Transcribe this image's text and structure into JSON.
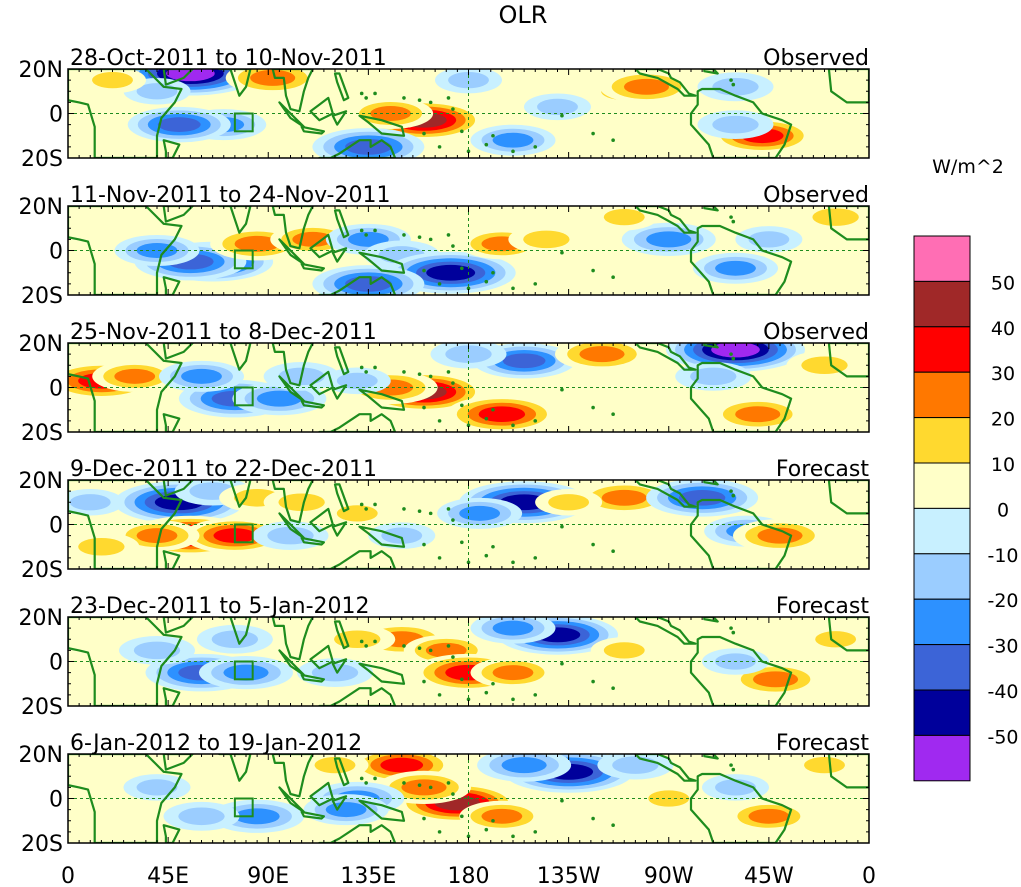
{
  "chart_data": {
    "type": "heatmap",
    "title": "OLR",
    "colorbar": {
      "units": "W/m^2",
      "tick_labels": [
        "50",
        "40",
        "30",
        "20",
        "10",
        "0",
        "-10",
        "-20",
        "-30",
        "-40",
        "-50"
      ],
      "levels": [
        60,
        50,
        40,
        30,
        20,
        10,
        0,
        -10,
        -20,
        -30,
        -40,
        -50,
        -60
      ],
      "colors": [
        "#ff6eb4",
        "#a02828",
        "#ff0000",
        "#ff7800",
        "#ffd92f",
        "#ffffc8",
        "#c8f0ff",
        "#9bcdff",
        "#2d91ff",
        "#3c64d7",
        "#00009b",
        "#a029f0"
      ]
    },
    "x_axis": {
      "tick_labels": [
        "0",
        "45E",
        "90E",
        "135E",
        "180",
        "135W",
        "90W",
        "45W",
        "0"
      ],
      "lon_values": [
        0,
        45,
        90,
        135,
        180,
        225,
        270,
        315,
        360
      ],
      "range": [
        0,
        360
      ]
    },
    "y_axis": {
      "tick_labels": [
        "20N",
        "0",
        "20S"
      ],
      "lat_values": [
        20,
        0,
        -20
      ],
      "range": [
        -20,
        20
      ]
    },
    "land_color": "#1e8c1e",
    "box_marker": {
      "lon": [
        75,
        83
      ],
      "lat": [
        -8,
        0
      ]
    },
    "panels": [
      {
        "period": "28-Oct-2011 to 10-Nov-2011",
        "label": "Observed",
        "anomalies": [
          {
            "lon": 160,
            "lat": -3,
            "value": 45
          },
          {
            "lon": 145,
            "lat": 0,
            "value": 25
          },
          {
            "lon": 55,
            "lat": 18,
            "value": -55
          },
          {
            "lon": 40,
            "lat": 10,
            "value": -15
          },
          {
            "lon": 92,
            "lat": 16,
            "value": 30
          },
          {
            "lon": 70,
            "lat": -5,
            "value": -25
          },
          {
            "lon": 50,
            "lat": -5,
            "value": -35
          },
          {
            "lon": 135,
            "lat": -15,
            "value": -40
          },
          {
            "lon": 200,
            "lat": -12,
            "value": -25
          },
          {
            "lon": 250,
            "lat": 10,
            "value": 20
          },
          {
            "lon": 260,
            "lat": 12,
            "value": 30
          },
          {
            "lon": 312,
            "lat": -10,
            "value": 35
          },
          {
            "lon": 300,
            "lat": -5,
            "value": -20
          },
          {
            "lon": 300,
            "lat": 12,
            "value": -20
          },
          {
            "lon": 220,
            "lat": 3,
            "value": -15
          },
          {
            "lon": 180,
            "lat": 15,
            "value": -15
          },
          {
            "lon": 20,
            "lat": 15,
            "value": 15
          }
        ]
      },
      {
        "period": "11-Nov-2011 to 24-Nov-2011",
        "label": "Observed",
        "anomalies": [
          {
            "lon": 65,
            "lat": -5,
            "value": -45
          },
          {
            "lon": 55,
            "lat": -5,
            "value": -40
          },
          {
            "lon": 40,
            "lat": 0,
            "value": -25
          },
          {
            "lon": 85,
            "lat": 3,
            "value": 30
          },
          {
            "lon": 110,
            "lat": 5,
            "value": 25
          },
          {
            "lon": 135,
            "lat": 5,
            "value": -25
          },
          {
            "lon": 150,
            "lat": -2,
            "value": -20
          },
          {
            "lon": 172,
            "lat": -10,
            "value": -50
          },
          {
            "lon": 135,
            "lat": -15,
            "value": -40
          },
          {
            "lon": 195,
            "lat": 3,
            "value": 25
          },
          {
            "lon": 215,
            "lat": 5,
            "value": 20
          },
          {
            "lon": 270,
            "lat": 5,
            "value": -30
          },
          {
            "lon": 300,
            "lat": -8,
            "value": -25
          },
          {
            "lon": 315,
            "lat": 5,
            "value": -15
          },
          {
            "lon": 345,
            "lat": 15,
            "value": 20
          },
          {
            "lon": 250,
            "lat": 15,
            "value": 15
          }
        ]
      },
      {
        "period": "25-Nov-2011 to 8-Dec-2011",
        "label": "Observed",
        "anomalies": [
          {
            "lon": 15,
            "lat": 3,
            "value": 40
          },
          {
            "lon": 30,
            "lat": 5,
            "value": 25
          },
          {
            "lon": 160,
            "lat": -2,
            "value": 45
          },
          {
            "lon": 145,
            "lat": 0,
            "value": 30
          },
          {
            "lon": 195,
            "lat": -12,
            "value": 40
          },
          {
            "lon": 75,
            "lat": -5,
            "value": -40
          },
          {
            "lon": 95,
            "lat": -5,
            "value": -30
          },
          {
            "lon": 60,
            "lat": 5,
            "value": -25
          },
          {
            "lon": 105,
            "lat": 5,
            "value": -20
          },
          {
            "lon": 130,
            "lat": 3,
            "value": -15
          },
          {
            "lon": 205,
            "lat": 12,
            "value": -35
          },
          {
            "lon": 240,
            "lat": 15,
            "value": 30
          },
          {
            "lon": 300,
            "lat": 17,
            "value": -55
          },
          {
            "lon": 310,
            "lat": -12,
            "value": 30
          },
          {
            "lon": 290,
            "lat": 5,
            "value": -20
          },
          {
            "lon": 340,
            "lat": 10,
            "value": 20
          },
          {
            "lon": 180,
            "lat": 15,
            "value": -20
          }
        ]
      },
      {
        "period": "9-Dec-2011 to 22-Dec-2011",
        "label": "Forecast",
        "anomalies": [
          {
            "lon": 50,
            "lat": 10,
            "value": -50
          },
          {
            "lon": 65,
            "lat": 15,
            "value": -20
          },
          {
            "lon": 55,
            "lat": -5,
            "value": 45
          },
          {
            "lon": 75,
            "lat": -5,
            "value": 35
          },
          {
            "lon": 40,
            "lat": -5,
            "value": 25
          },
          {
            "lon": 85,
            "lat": 12,
            "value": 20
          },
          {
            "lon": 105,
            "lat": 10,
            "value": 20
          },
          {
            "lon": 130,
            "lat": 5,
            "value": 15
          },
          {
            "lon": 150,
            "lat": -5,
            "value": -15
          },
          {
            "lon": 100,
            "lat": -5,
            "value": -20
          },
          {
            "lon": 205,
            "lat": 10,
            "value": -50
          },
          {
            "lon": 185,
            "lat": 5,
            "value": -25
          },
          {
            "lon": 250,
            "lat": 12,
            "value": 30
          },
          {
            "lon": 225,
            "lat": 10,
            "value": 15
          },
          {
            "lon": 285,
            "lat": 12,
            "value": -40
          },
          {
            "lon": 305,
            "lat": -3,
            "value": -25
          },
          {
            "lon": 320,
            "lat": -5,
            "value": 30
          },
          {
            "lon": 15,
            "lat": -10,
            "value": 20
          },
          {
            "lon": 10,
            "lat": 10,
            "value": -15
          }
        ]
      },
      {
        "period": "23-Dec-2011 to 5-Jan-2012",
        "label": "Forecast",
        "anomalies": [
          {
            "lon": 60,
            "lat": -5,
            "value": -40
          },
          {
            "lon": 80,
            "lat": -5,
            "value": -30
          },
          {
            "lon": 40,
            "lat": 5,
            "value": -20
          },
          {
            "lon": 75,
            "lat": 10,
            "value": -20
          },
          {
            "lon": 150,
            "lat": 10,
            "value": 30
          },
          {
            "lon": 130,
            "lat": 10,
            "value": 20
          },
          {
            "lon": 170,
            "lat": 5,
            "value": 25
          },
          {
            "lon": 180,
            "lat": -5,
            "value": 40
          },
          {
            "lon": 200,
            "lat": -5,
            "value": 25
          },
          {
            "lon": 120,
            "lat": -5,
            "value": -20
          },
          {
            "lon": 220,
            "lat": 12,
            "value": -45
          },
          {
            "lon": 200,
            "lat": 15,
            "value": -25
          },
          {
            "lon": 250,
            "lat": 5,
            "value": 15
          },
          {
            "lon": 318,
            "lat": -8,
            "value": 30
          },
          {
            "lon": 300,
            "lat": 0,
            "value": -15
          },
          {
            "lon": 345,
            "lat": 10,
            "value": 15
          }
        ]
      },
      {
        "period": "6-Jan-2012 to 19-Jan-2012",
        "label": "Forecast",
        "anomalies": [
          {
            "lon": 150,
            "lat": 15,
            "value": 35
          },
          {
            "lon": 175,
            "lat": -2,
            "value": 45
          },
          {
            "lon": 160,
            "lat": 5,
            "value": 30
          },
          {
            "lon": 195,
            "lat": -8,
            "value": 25
          },
          {
            "lon": 120,
            "lat": 15,
            "value": 15
          },
          {
            "lon": 130,
            "lat": 0,
            "value": -30
          },
          {
            "lon": 125,
            "lat": -5,
            "value": -25
          },
          {
            "lon": 85,
            "lat": -8,
            "value": -30
          },
          {
            "lon": 60,
            "lat": -8,
            "value": -20
          },
          {
            "lon": 40,
            "lat": 5,
            "value": -15
          },
          {
            "lon": 225,
            "lat": 12,
            "value": -50
          },
          {
            "lon": 205,
            "lat": 15,
            "value": -30
          },
          {
            "lon": 255,
            "lat": 15,
            "value": -20
          },
          {
            "lon": 270,
            "lat": 0,
            "value": 15
          },
          {
            "lon": 315,
            "lat": -8,
            "value": 25
          },
          {
            "lon": 300,
            "lat": 5,
            "value": -15
          },
          {
            "lon": 340,
            "lat": 15,
            "value": 15
          }
        ]
      }
    ]
  }
}
